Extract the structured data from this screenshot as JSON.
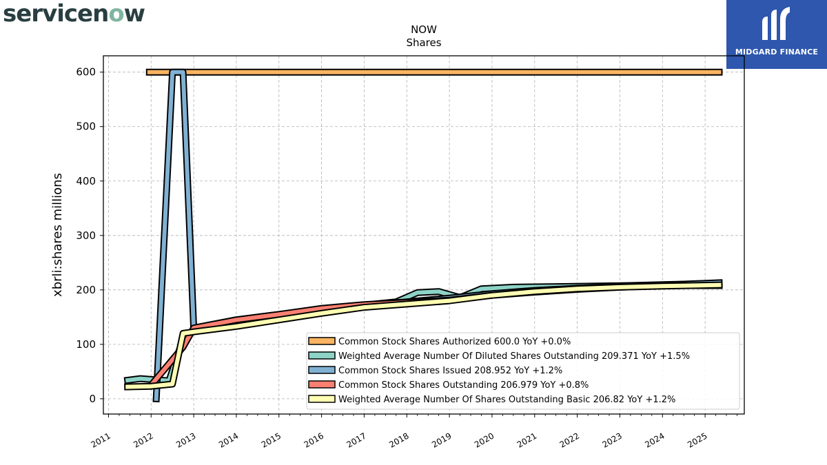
{
  "brand": {
    "name_part1": "servicen",
    "name_o": "o",
    "name_part2": "w"
  },
  "partner": {
    "name": "MIDGARD FINANCE"
  },
  "colors": {
    "authorized": "#fdb462",
    "diluted": "#8dd3c7",
    "issued": "#80b1d3",
    "outstanding": "#fb8072",
    "basic": "#ffffb3"
  },
  "chart_data": {
    "type": "area",
    "title": "NOW",
    "subtitle": "Shares",
    "xlabel": "",
    "ylabel": "xbrli:shares millions",
    "xlim": [
      2010.88,
      2025.92
    ],
    "ylim": [
      -28,
      630
    ],
    "x_ticks": [
      2011,
      2012,
      2013,
      2014,
      2015,
      2016,
      2017,
      2018,
      2019,
      2020,
      2021,
      2022,
      2023,
      2024,
      2025
    ],
    "y_ticks": [
      0,
      100,
      200,
      300,
      400,
      500,
      600
    ],
    "grid": true,
    "legend_position": "lower-right",
    "series": [
      {
        "key": "authorized",
        "name": "Common Stock Shares Authorized",
        "legend": "Common Stock Shares Authorized  600.0 YoY +0.0%",
        "points": [
          [
            2011.96,
            600
          ],
          [
            2025.33,
            600
          ]
        ]
      },
      {
        "key": "diluted",
        "name": "Weighted Average Number Of Diluted Shares Outstanding",
        "legend": "Weighted Average Number Of Diluted Shares Outstanding  209.371 YoY +1.5%",
        "points": [
          [
            2011.45,
            34
          ],
          [
            2011.75,
            37
          ],
          [
            2012.42,
            33
          ],
          [
            2012.75,
            110
          ],
          [
            2013.0,
            125
          ],
          [
            2014.0,
            140
          ],
          [
            2015.0,
            152
          ],
          [
            2016.0,
            163
          ],
          [
            2017.0,
            172
          ],
          [
            2017.75,
            178
          ],
          [
            2018.25,
            195
          ],
          [
            2018.75,
            197
          ],
          [
            2019.25,
            186
          ],
          [
            2019.75,
            202
          ],
          [
            2020.5,
            205
          ],
          [
            2021.5,
            206
          ],
          [
            2022.5,
            207
          ],
          [
            2023.25,
            208
          ],
          [
            2024.25,
            210
          ],
          [
            2025.33,
            211
          ]
        ]
      },
      {
        "key": "issued",
        "name": "Common Stock Shares Issued",
        "legend": "Common Stock Shares Issued  208.952 YoY +1.2%",
        "points": [
          [
            2012.12,
            0
          ],
          [
            2012.5,
            600
          ],
          [
            2012.75,
            600
          ],
          [
            2013.0,
            130
          ],
          [
            2014.0,
            145
          ],
          [
            2015.0,
            155
          ],
          [
            2016.0,
            165
          ],
          [
            2017.0,
            172
          ],
          [
            2018.0,
            178
          ],
          [
            2019.0,
            185
          ],
          [
            2020.0,
            193
          ],
          [
            2021.0,
            199
          ],
          [
            2022.0,
            203
          ],
          [
            2023.0,
            206
          ],
          [
            2024.0,
            209
          ],
          [
            2025.33,
            213
          ]
        ]
      },
      {
        "key": "outstanding",
        "name": "Common Stock Shares Outstanding",
        "legend": "Common Stock Shares Outstanding  206.979 YoY +0.8%",
        "points": [
          [
            2012.0,
            25
          ],
          [
            2012.75,
            95
          ],
          [
            2013.0,
            130
          ],
          [
            2014.0,
            145
          ],
          [
            2015.0,
            155
          ],
          [
            2016.0,
            166
          ],
          [
            2017.0,
            173
          ],
          [
            2018.0,
            177
          ],
          [
            2019.0,
            181
          ],
          [
            2020.0,
            190
          ],
          [
            2021.0,
            196
          ],
          [
            2022.0,
            201
          ],
          [
            2023.0,
            205
          ],
          [
            2024.0,
            208
          ],
          [
            2025.33,
            208
          ]
        ]
      },
      {
        "key": "basic",
        "name": "Weighted Average Number Of Shares Outstanding Basic",
        "legend": "Weighted Average Number Of Shares Outstanding Basic  206.82 YoY +1.2%",
        "points": [
          [
            2011.45,
            22
          ],
          [
            2012.0,
            23
          ],
          [
            2012.5,
            27
          ],
          [
            2012.75,
            120
          ],
          [
            2013.0,
            123
          ],
          [
            2014.0,
            133
          ],
          [
            2015.0,
            145
          ],
          [
            2016.0,
            157
          ],
          [
            2017.0,
            168
          ],
          [
            2018.0,
            174
          ],
          [
            2019.0,
            180
          ],
          [
            2020.0,
            190
          ],
          [
            2021.0,
            197
          ],
          [
            2022.0,
            202
          ],
          [
            2023.0,
            205
          ],
          [
            2024.0,
            207
          ],
          [
            2025.33,
            209
          ]
        ]
      }
    ]
  }
}
